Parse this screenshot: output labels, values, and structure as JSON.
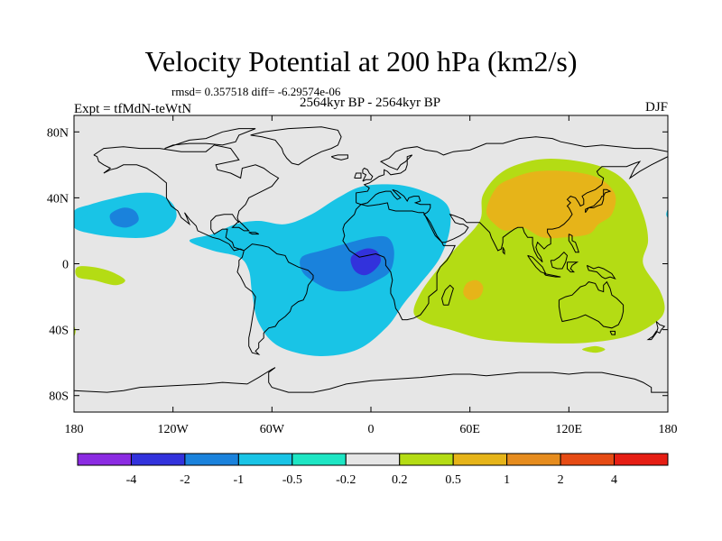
{
  "header": {
    "title": "Velocity Potential at 200 hPa (km2/s)",
    "stats": "rmsd= 0.357518 diff= -6.29574e-06",
    "period": "2564kyr BP - 2564kyr BP",
    "experiment": "Expt = tfMdN-teWtN",
    "season": "DJF"
  },
  "chart_data": {
    "type": "heatmap",
    "title": "Velocity Potential at 200 hPa (km2/s)",
    "xlabel": "",
    "ylabel": "",
    "xlim": [
      -180,
      180
    ],
    "ylim": [
      -90,
      90
    ],
    "x_ticks": [
      {
        "value": -180,
        "label": "180"
      },
      {
        "value": -120,
        "label": "120W"
      },
      {
        "value": -60,
        "label": "60W"
      },
      {
        "value": 0,
        "label": "0"
      },
      {
        "value": 60,
        "label": "60E"
      },
      {
        "value": 120,
        "label": "120E"
      },
      {
        "value": 180,
        "label": "180"
      }
    ],
    "y_ticks": [
      {
        "value": 80,
        "label": "80N"
      },
      {
        "value": 40,
        "label": "40N"
      },
      {
        "value": 0,
        "label": "0"
      },
      {
        "value": -40,
        "label": "40S"
      },
      {
        "value": -80,
        "label": "80S"
      }
    ],
    "colorbar": {
      "boundaries": [
        "-4",
        "-2",
        "-1",
        "-0.5",
        "-0.2",
        "0.2",
        "0.5",
        "1",
        "2",
        "4"
      ],
      "colors": [
        "#8b2be2",
        "#3232dc",
        "#1a82dc",
        "#19c4e6",
        "#1ee6c4",
        "#e6e6e6",
        "#b4dc14",
        "#e6b419",
        "#e68c1e",
        "#e64b14",
        "#e61e14"
      ]
    },
    "regions": [
      {
        "level": -0.5,
        "points": [
          [
            -180,
            32
          ],
          [
            -170,
            36
          ],
          [
            -155,
            40
          ],
          [
            -140,
            43
          ],
          [
            -128,
            42
          ],
          [
            -120,
            36
          ],
          [
            -118,
            28
          ],
          [
            -124,
            20
          ],
          [
            -136,
            16
          ],
          [
            -152,
            16
          ],
          [
            -168,
            18
          ],
          [
            -180,
            22
          ]
        ]
      },
      {
        "level": -0.5,
        "points": [
          [
            -176,
            28
          ],
          [
            -172,
            31
          ],
          [
            -176,
            33
          ]
        ]
      },
      {
        "level": -1,
        "points": [
          [
            -158,
            30
          ],
          [
            -150,
            34
          ],
          [
            -143,
            32
          ],
          [
            -141,
            26
          ],
          [
            -148,
            22
          ],
          [
            -156,
            24
          ]
        ]
      },
      {
        "level": -0.5,
        "points": [
          [
            -110,
            14
          ],
          [
            -96,
            18
          ],
          [
            -82,
            24
          ],
          [
            -68,
            26
          ],
          [
            -52,
            24
          ],
          [
            -36,
            30
          ],
          [
            -20,
            40
          ],
          [
            -5,
            47
          ],
          [
            15,
            48
          ],
          [
            32,
            44
          ],
          [
            46,
            36
          ],
          [
            48,
            22
          ],
          [
            42,
            4
          ],
          [
            30,
            -12
          ],
          [
            20,
            -24
          ],
          [
            10,
            -38
          ],
          [
            -8,
            -52
          ],
          [
            -32,
            -56
          ],
          [
            -56,
            -50
          ],
          [
            -68,
            -36
          ],
          [
            -72,
            -18
          ],
          [
            -74,
            -4
          ],
          [
            -80,
            4
          ],
          [
            -96,
            8
          ]
        ]
      },
      {
        "level": 0.2,
        "points": [
          [
            -178,
            -2
          ],
          [
            -168,
            -2
          ],
          [
            -157,
            -5
          ],
          [
            -149,
            -10
          ],
          [
            -155,
            -13
          ],
          [
            -168,
            -10
          ],
          [
            -178,
            -8
          ]
        ]
      },
      {
        "level": 0.2,
        "points": [
          [
            -180,
            -44
          ],
          [
            -179,
            -41
          ],
          [
            -180,
            -38
          ]
        ]
      },
      {
        "level": -1,
        "points": [
          [
            -42,
            4
          ],
          [
            -30,
            8
          ],
          [
            -16,
            12
          ],
          [
            0,
            16
          ],
          [
            10,
            16
          ],
          [
            14,
            8
          ],
          [
            12,
            -4
          ],
          [
            4,
            -10
          ],
          [
            -10,
            -16
          ],
          [
            -24,
            -16
          ],
          [
            -36,
            -10
          ],
          [
            -42,
            -4
          ]
        ]
      },
      {
        "level": -2,
        "points": [
          [
            -12,
            4
          ],
          [
            -4,
            9
          ],
          [
            3,
            8
          ],
          [
            6,
            2
          ],
          [
            2,
            -4
          ],
          [
            -4,
            -7
          ],
          [
            -10,
            -4
          ]
        ]
      },
      {
        "level": 0.2,
        "points": [
          [
            26,
            -30
          ],
          [
            30,
            -18
          ],
          [
            40,
            -4
          ],
          [
            52,
            10
          ],
          [
            66,
            26
          ],
          [
            68,
            42
          ],
          [
            80,
            56
          ],
          [
            100,
            63
          ],
          [
            120,
            63
          ],
          [
            142,
            58
          ],
          [
            156,
            48
          ],
          [
            165,
            30
          ],
          [
            168,
            14
          ],
          [
            165,
            0
          ],
          [
            175,
            -16
          ],
          [
            178,
            -28
          ],
          [
            172,
            -36
          ],
          [
            156,
            -44
          ],
          [
            130,
            -48
          ],
          [
            100,
            -48
          ],
          [
            70,
            -46
          ],
          [
            48,
            -40
          ],
          [
            34,
            -36
          ]
        ]
      },
      {
        "level": 0.2,
        "points": [
          [
            128,
            -52
          ],
          [
            136,
            -50
          ],
          [
            142,
            -52
          ],
          [
            136,
            -54
          ]
        ]
      },
      {
        "level": 0.5,
        "points": [
          [
            70,
            32
          ],
          [
            75,
            24
          ],
          [
            82,
            20
          ],
          [
            92,
            22
          ],
          [
            104,
            16
          ],
          [
            118,
            16
          ],
          [
            132,
            18
          ],
          [
            138,
            24
          ],
          [
            146,
            30
          ],
          [
            148,
            42
          ],
          [
            138,
            52
          ],
          [
            120,
            56
          ],
          [
            100,
            56
          ],
          [
            86,
            52
          ],
          [
            76,
            46
          ]
        ]
      },
      {
        "level": 0.5,
        "points": [
          [
            58,
            -12
          ],
          [
            64,
            -10
          ],
          [
            68,
            -14
          ],
          [
            66,
            -20
          ],
          [
            60,
            -22
          ],
          [
            56,
            -18
          ]
        ]
      },
      {
        "level": -0.5,
        "points": [
          [
            179,
            30
          ],
          [
            180,
            28
          ],
          [
            180,
            33
          ]
        ]
      }
    ]
  }
}
